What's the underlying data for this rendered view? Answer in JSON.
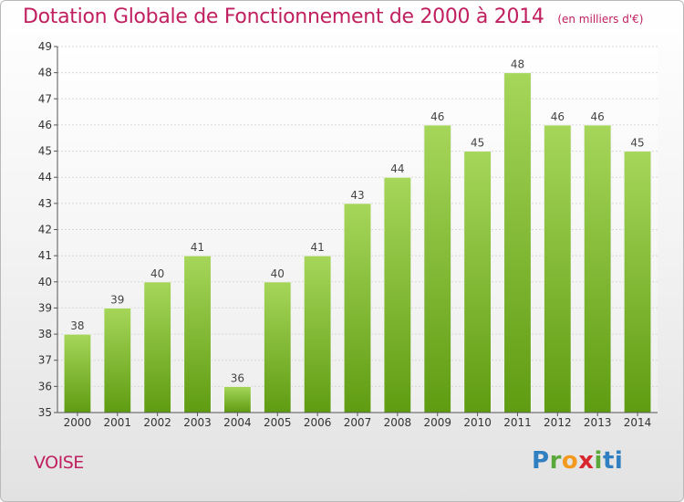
{
  "header": {
    "title": "Dotation Globale de Fonctionnement de 2000 à 2014",
    "unit": "(en milliers d'€)"
  },
  "footer": {
    "commune": "VOISE",
    "logo_letters": [
      "P",
      "r",
      "o",
      "x",
      "i",
      "ti"
    ]
  },
  "colors": {
    "title": "#c02060",
    "bar_top": "#a6d65a",
    "bar_bottom": "#5f9c12",
    "axis": "#555555",
    "grid": "#d8d8d8"
  },
  "chart_data": {
    "type": "bar",
    "categories": [
      "2000",
      "2001",
      "2002",
      "2003",
      "2004",
      "2005",
      "2006",
      "2007",
      "2008",
      "2009",
      "2010",
      "2011",
      "2012",
      "2013",
      "2014"
    ],
    "values": [
      38,
      39,
      40,
      41,
      36,
      40,
      41,
      43,
      44,
      46,
      45,
      48,
      46,
      46,
      45
    ],
    "ylim": [
      35,
      49
    ],
    "yticks": [
      35,
      36,
      37,
      38,
      39,
      40,
      41,
      42,
      43,
      44,
      45,
      46,
      47,
      48,
      49
    ],
    "grid": true,
    "data_labels": true
  }
}
